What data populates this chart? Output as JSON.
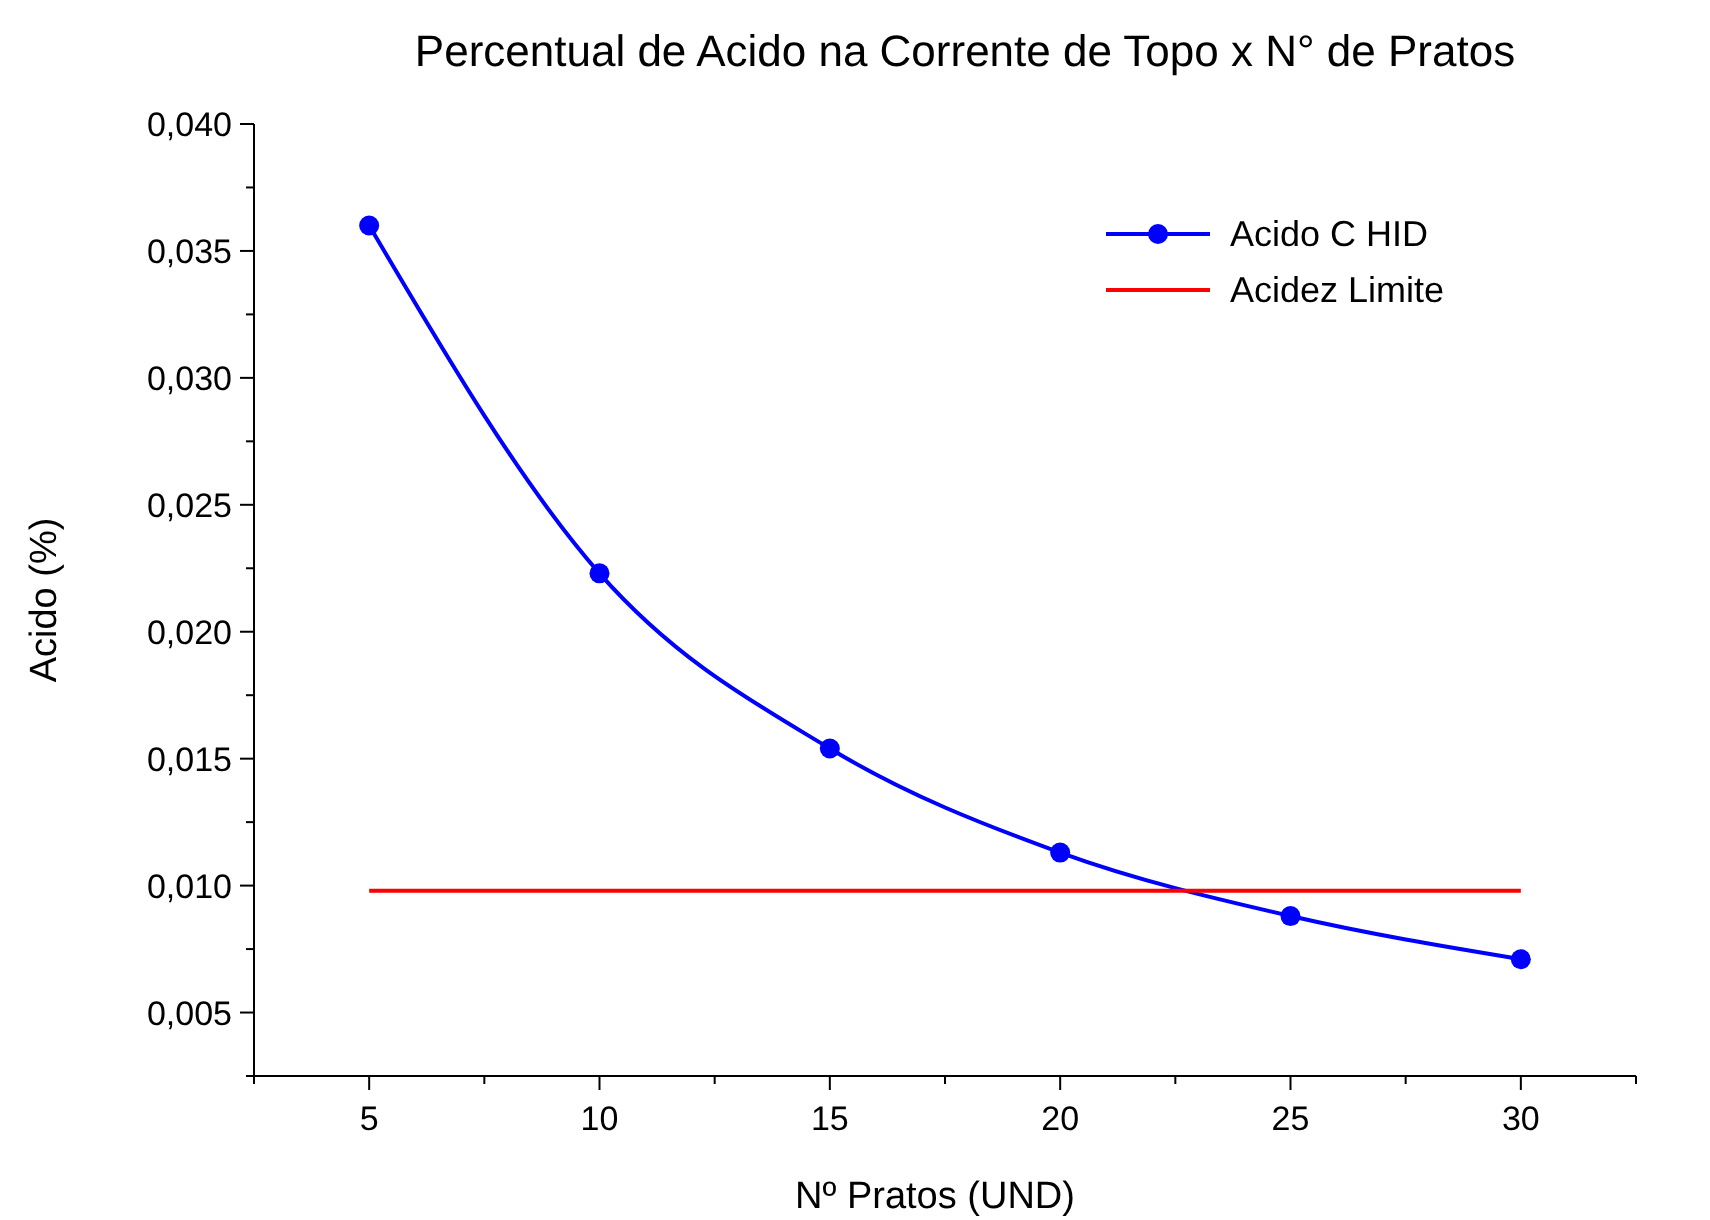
{
  "chart_data": {
    "type": "line",
    "title": "Percentual de Acido na Corrente de Topo x N° de Pratos",
    "xlabel": "Nº Pratos (UND)",
    "ylabel": "Acido (%)",
    "series": [
      {
        "name": "Acido C HID",
        "color": "#0000ff",
        "x": [
          5,
          10,
          15,
          20,
          25,
          30
        ],
        "values": [
          0.036,
          0.0223,
          0.0154,
          0.0113,
          0.0088,
          0.0071
        ],
        "marker": "circle"
      },
      {
        "name": "Acidez Limite",
        "color": "#ff0000",
        "x": [
          5,
          30
        ],
        "values": [
          0.0098,
          0.0098
        ],
        "marker": "none"
      }
    ],
    "xlim": [
      2.5,
      32.5
    ],
    "xticks": [
      {
        "value": 2.5,
        "label": null
      },
      5,
      {
        "value": 7.5,
        "label": null
      },
      10,
      {
        "value": 12.5,
        "label": null
      },
      15,
      {
        "value": 17.5,
        "label": null
      },
      20,
      {
        "value": 22.5,
        "label": null
      },
      25,
      {
        "value": 27.5,
        "label": null
      },
      30,
      {
        "value": 32.5,
        "label": null
      }
    ],
    "ylim": [
      0.0025,
      0.04
    ],
    "yticks": [
      {
        "value": 0.0025,
        "label": null
      },
      {
        "value": 0.005,
        "label": "0,005"
      },
      {
        "value": 0.0075,
        "label": null
      },
      {
        "value": 0.01,
        "label": "0,010"
      },
      {
        "value": 0.0125,
        "label": null
      },
      {
        "value": 0.015,
        "label": "0,015"
      },
      {
        "value": 0.0175,
        "label": null
      },
      {
        "value": 0.02,
        "label": "0,020"
      },
      {
        "value": 0.0225,
        "label": null
      },
      {
        "value": 0.025,
        "label": "0,025"
      },
      {
        "value": 0.0275,
        "label": null
      },
      {
        "value": 0.03,
        "label": "0,030"
      },
      {
        "value": 0.0325,
        "label": null
      },
      {
        "value": 0.035,
        "label": "0,035"
      },
      {
        "value": 0.0375,
        "label": null
      },
      {
        "value": 0.04,
        "label": "0,040"
      }
    ],
    "grid": false,
    "legend": "top right",
    "line_style": "solid"
  }
}
